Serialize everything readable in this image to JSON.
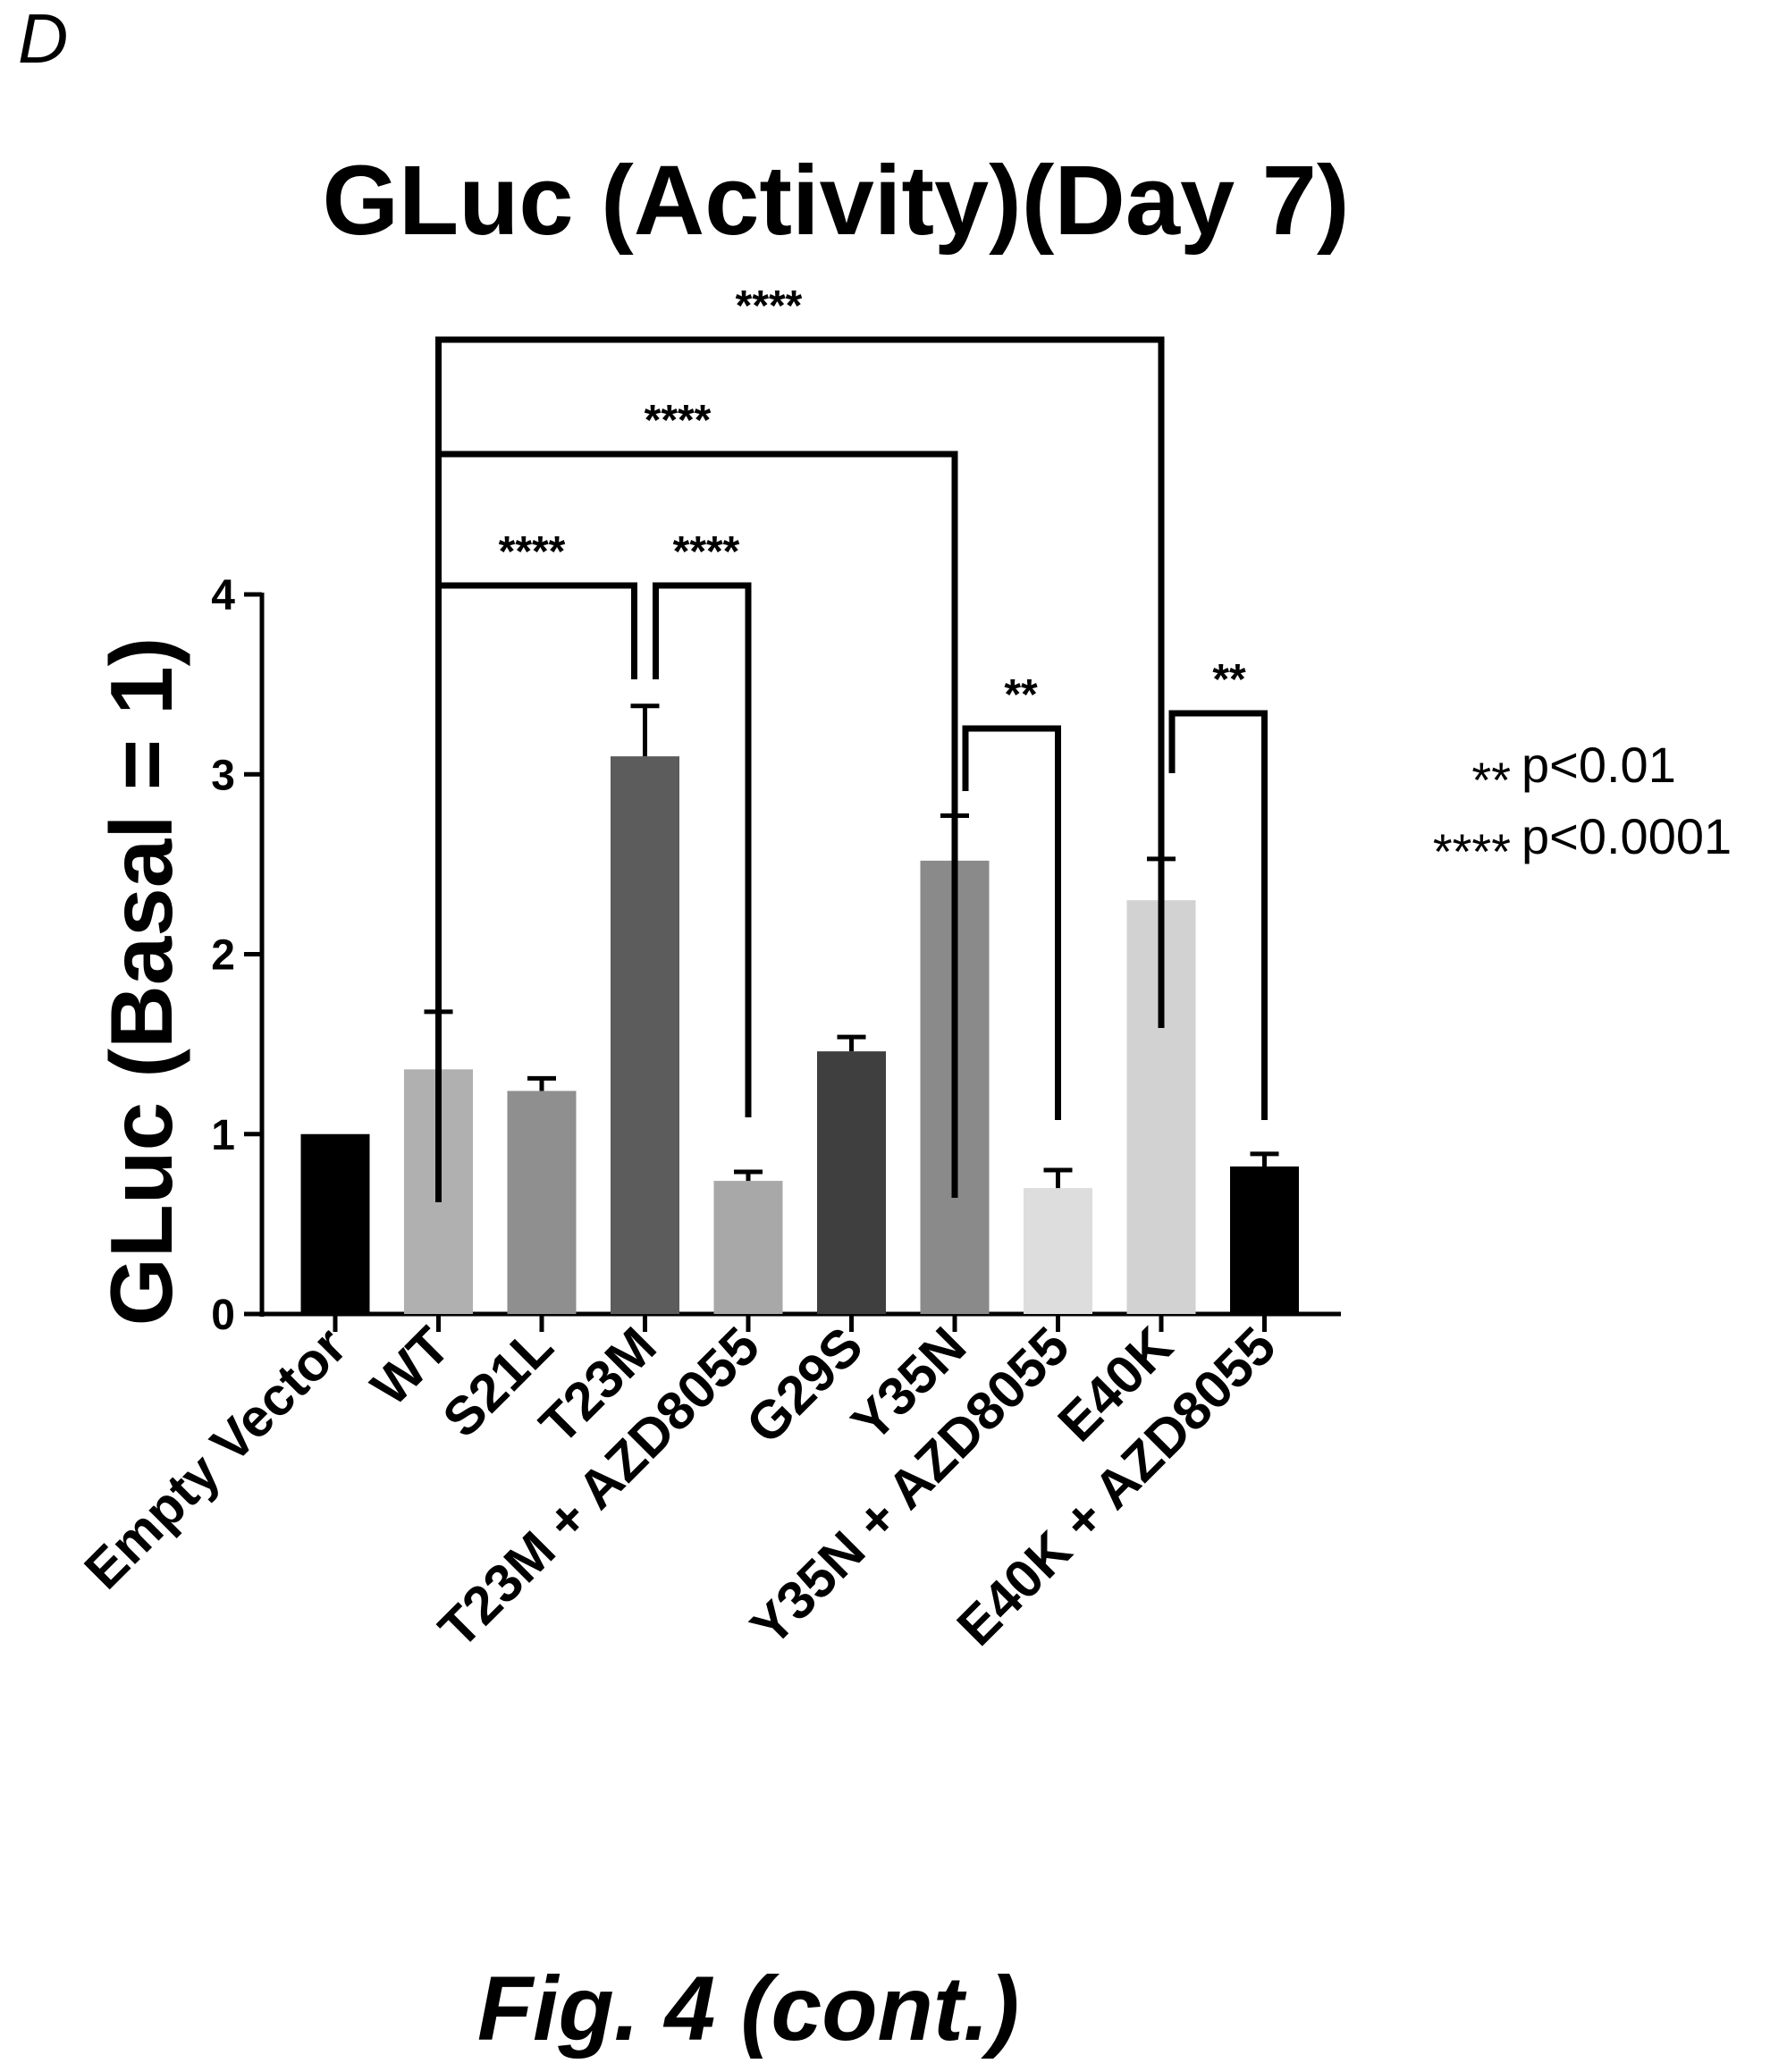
{
  "panel_label": "D",
  "figure_caption": "Fig. 4 (cont.)",
  "legend": [
    {
      "stars": "**",
      "text": "p<0.01"
    },
    {
      "stars": "****",
      "text": "p<0.0001"
    }
  ],
  "colors": {
    "ink": "#000000",
    "background": "#ffffff"
  },
  "chart_data": {
    "type": "bar",
    "title": "GLuc (Activity)(Day 7)",
    "xlabel": "",
    "ylabel": "GLuc (Basal = 1)",
    "ylim": [
      0,
      4
    ],
    "yticks": [
      "0",
      "1",
      "2",
      "3",
      "4"
    ],
    "grid": false,
    "categories": [
      "Empty Vector",
      "WT",
      "S21L",
      "T23M",
      "T23M + AZD8055",
      "G29S",
      "Y35N",
      "Y35N + AZD8055",
      "E40K",
      "E40K + AZD8055"
    ],
    "values": [
      1.0,
      1.36,
      1.24,
      3.1,
      0.74,
      1.46,
      2.52,
      0.7,
      2.3,
      0.82
    ],
    "errors": [
      0,
      0.32,
      0.07,
      0.28,
      0.05,
      0.08,
      0.25,
      0.1,
      0.23,
      0.07
    ],
    "bar_fills": [
      "#000000",
      "#b0b0b0",
      "#8f8f8f",
      "#5c5c5c",
      "#a8a8a8",
      "#3f3f3f",
      "#8a8a8a",
      "#dddddd",
      "#d2d2d2",
      "#000000"
    ],
    "significance": [
      {
        "from": 1,
        "to": 3,
        "label": "****"
      },
      {
        "from": 3,
        "to": 4,
        "label": "****"
      },
      {
        "from": 1,
        "to": 6,
        "label": "****"
      },
      {
        "from": 1,
        "to": 8,
        "label": "****"
      },
      {
        "from": 6,
        "to": 7,
        "label": "**"
      },
      {
        "from": 8,
        "to": 9,
        "label": "**"
      }
    ]
  }
}
